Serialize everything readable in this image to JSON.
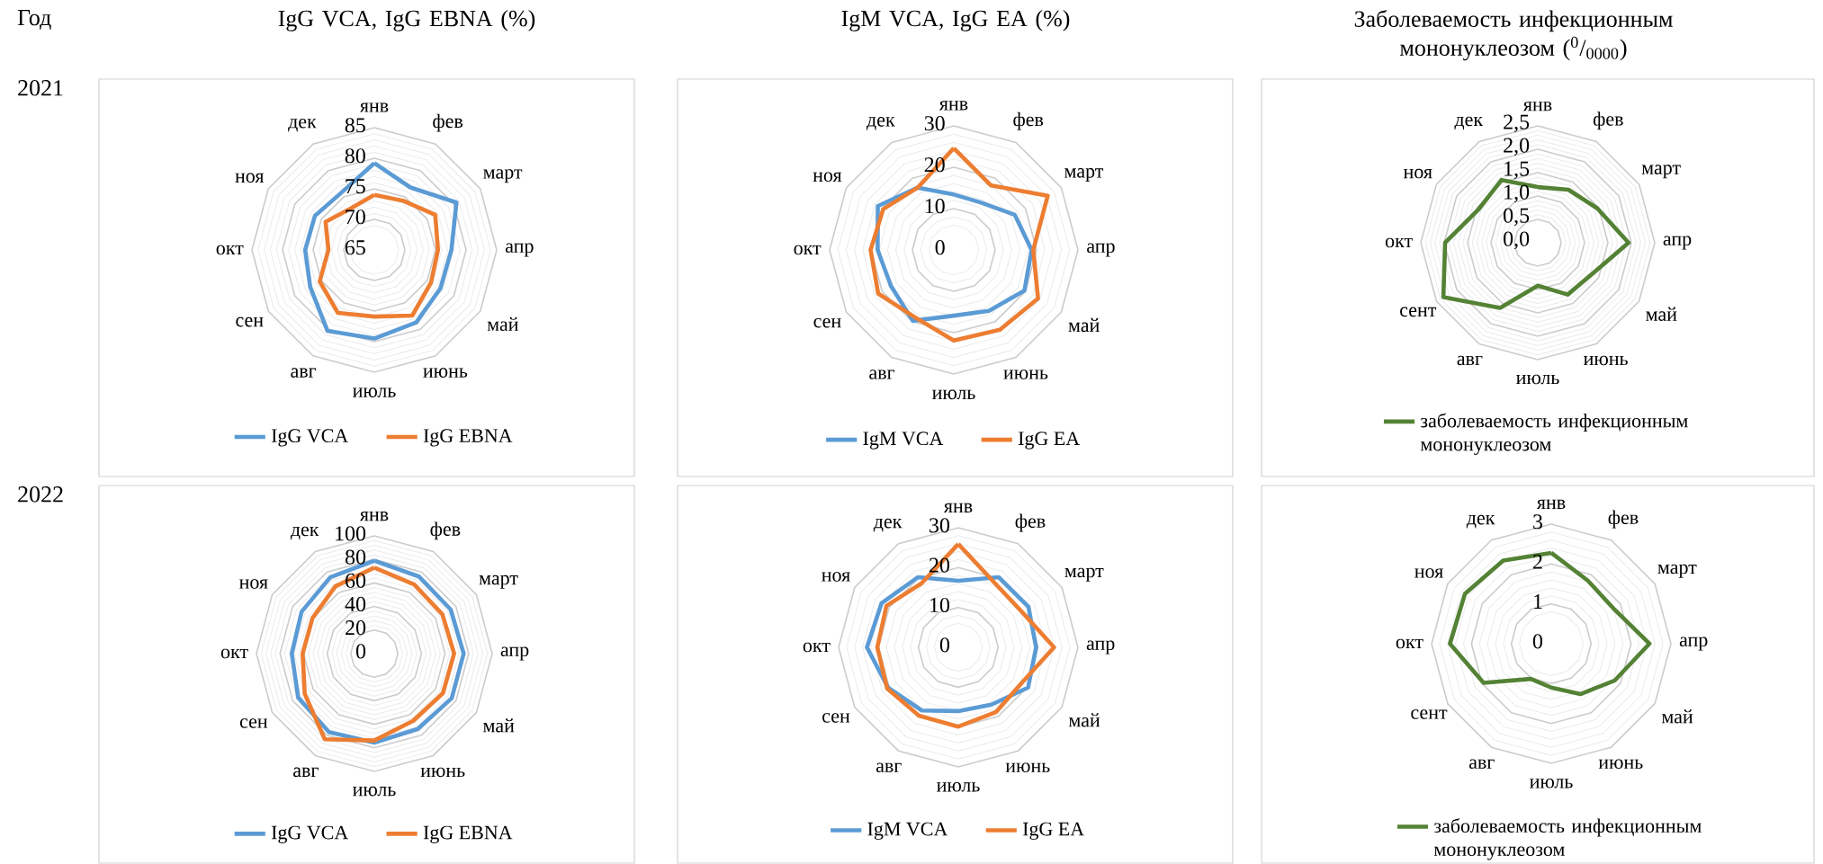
{
  "chart_data": [
    {
      "type": "radar",
      "title": "IgG VCA, IgG EBNA (%)",
      "subtitle": "2021",
      "annotations": [
        "Год"
      ],
      "grid": true,
      "legend": "bottom",
      "categories": [
        "янв",
        "фев",
        "март",
        "апр",
        "май",
        "июнь",
        "июль",
        "авг",
        "сен",
        "окт",
        "ноя",
        "дек"
      ],
      "ylim": [
        65,
        85
      ],
      "yticks": [
        65,
        70,
        75,
        80,
        85
      ],
      "series": [
        {
          "name": "IgG VCA",
          "color": "#5b9bd5",
          "values": [
            79.2,
            76.8,
            80.5,
            77.6,
            77.5,
            78.7,
            79.5,
            80.3,
            77.1,
            76.3,
            76.2,
            75.8
          ]
        },
        {
          "name": "IgG EBNA",
          "color": "#ed7d31",
          "values": [
            74.0,
            74.3,
            76.5,
            75.4,
            75.7,
            77.4,
            75.9,
            76.9,
            75.3,
            72.5,
            74.2,
            72.8
          ]
        }
      ]
    },
    {
      "type": "radar",
      "title": "IgM VCA, IgG EA (%)",
      "grid": true,
      "legend": "bottom",
      "categories": [
        "янв",
        "фев",
        "март",
        "апр",
        "май",
        "июнь",
        "июль",
        "авг",
        "сен",
        "окт",
        "ноя",
        "дек"
      ],
      "ylim": [
        0,
        30
      ],
      "yticks": [
        0,
        10,
        20,
        30
      ],
      "series": [
        {
          "name": "IgM VCA",
          "color": "#5b9bd5",
          "values": [
            13.4,
            13.2,
            17.0,
            18.8,
            19.7,
            17.0,
            15.9,
            19.8,
            17.5,
            18.4,
            21.2,
            17.4
          ]
        },
        {
          "name": "IgG EA",
          "color": "#ed7d31",
          "values": [
            24.6,
            18.0,
            26.2,
            19.2,
            23.5,
            22.3,
            21.9,
            18.8,
            21.1,
            20.1,
            19.7,
            17.4
          ]
        }
      ]
    },
    {
      "type": "radar",
      "title": "Заболеваемость инфекционным мононуклеозом ($^{0}$/$_{0000}$)",
      "grid": true,
      "legend": "bottom",
      "categories": [
        "янв",
        "фев",
        "март",
        "апр",
        "май",
        "июнь",
        "июль",
        "авг",
        "сент",
        "окт",
        "ноя",
        "дек"
      ],
      "ylim": [
        0,
        2.5
      ],
      "yticks": [
        {
          "value": 0,
          "label": "0,0"
        },
        {
          "value": 0.5,
          "label": "0,5"
        },
        {
          "value": 1,
          "label": "1,0"
        },
        {
          "value": 1.5,
          "label": "1,5"
        },
        {
          "value": 2,
          "label": "2,0"
        },
        {
          "value": 2.5,
          "label": "2,5"
        }
      ],
      "series": [
        {
          "name": "заболеваемость инфекционным мононуклеозом",
          "color": "#548235",
          "values": [
            1.19,
            1.31,
            1.47,
            1.94,
            1.34,
            1.28,
            0.92,
            1.61,
            2.33,
            1.98,
            1.45,
            1.55
          ]
        }
      ]
    },
    {
      "type": "radar",
      "subtitle": "2022",
      "grid": true,
      "legend": "bottom",
      "categories": [
        "янв",
        "фев",
        "март",
        "апр",
        "май",
        "июнь",
        "июль",
        "авг",
        "сен",
        "окт",
        "ноя",
        "дек"
      ],
      "ylim": [
        0,
        100
      ],
      "yticks": [
        0,
        20,
        40,
        60,
        80,
        100
      ],
      "series": [
        {
          "name": "IgG VCA",
          "color": "#5b9bd5",
          "values": [
            78.9,
            75.6,
            74.8,
            75.8,
            75.8,
            73.8,
            75.6,
            76.9,
            74.6,
            70.0,
            71.2,
            74.8
          ]
        },
        {
          "name": "IgG EBNA",
          "color": "#ed7d31",
          "values": [
            73.0,
            67.7,
            66.7,
            67.7,
            67.2,
            65.9,
            73.8,
            84.0,
            68.2,
            60.8,
            60.5,
            66.0
          ]
        }
      ]
    },
    {
      "type": "radar",
      "grid": true,
      "legend": "bottom",
      "categories": [
        "янв",
        "фев",
        "март",
        "апр",
        "май",
        "июнь",
        "июль",
        "авг",
        "сен",
        "окт",
        "ноя",
        "дек"
      ],
      "ylim": [
        0,
        30
      ],
      "yticks": [
        0,
        10,
        20,
        30
      ],
      "series": [
        {
          "name": "IgM VCA",
          "color": "#5b9bd5",
          "values": [
            16.7,
            20.3,
            20.3,
            19.5,
            20.2,
            16.6,
            16.0,
            18.3,
            20.3,
            22.9,
            22.2,
            20.3
          ]
        },
        {
          "name": "IgG EA",
          "color": "#ed7d31",
          "values": [
            25.9,
            18.5,
            18.2,
            24.0,
            18.2,
            18.8,
            19.9,
            19.8,
            20.6,
            20.3,
            20.8,
            18.5
          ]
        }
      ]
    },
    {
      "type": "radar",
      "grid": true,
      "legend": "bottom",
      "categories": [
        "янв",
        "фев",
        "март",
        "апр",
        "май",
        "июнь",
        "июль",
        "авг",
        "сент",
        "окт",
        "ноя",
        "дек"
      ],
      "ylim": [
        0,
        3
      ],
      "yticks": [
        0,
        1,
        2,
        3
      ],
      "series": [
        {
          "name": "заболеваемость инфекционным мононуклеозом",
          "color": "#548235",
          "values": [
            2.28,
            1.83,
            1.79,
            2.46,
            1.84,
            1.46,
            1.1,
            1.02,
            1.96,
            2.54,
            2.5,
            2.41
          ]
        }
      ]
    }
  ]
}
